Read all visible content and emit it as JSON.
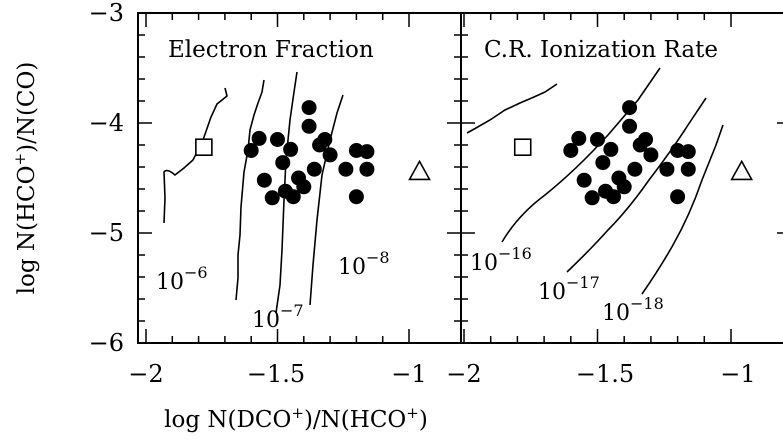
{
  "chart_data": [
    {
      "type": "scatter",
      "title": "Electron Fraction",
      "xlim": [
        -2.1,
        -0.9
      ],
      "ylim": [
        -6,
        -3
      ],
      "x_ticks": [
        "−2",
        "−1.5",
        "−1"
      ],
      "y_ticks": [
        "−3",
        "−4",
        "−5",
        "−6"
      ],
      "series": [
        {
          "marker": "filled-circle",
          "points": [
            [
              -1.6,
              -4.25
            ],
            [
              -1.57,
              -4.14
            ],
            [
              -1.55,
              -4.52
            ],
            [
              -1.52,
              -4.68
            ],
            [
              -1.5,
              -4.15
            ],
            [
              -1.48,
              -4.36
            ],
            [
              -1.47,
              -4.62
            ],
            [
              -1.45,
              -4.24
            ],
            [
              -1.44,
              -4.67
            ],
            [
              -1.42,
              -4.5
            ],
            [
              -1.4,
              -4.58
            ],
            [
              -1.38,
              -3.86
            ],
            [
              -1.38,
              -4.03
            ],
            [
              -1.36,
              -4.42
            ],
            [
              -1.34,
              -4.2
            ],
            [
              -1.32,
              -4.15
            ],
            [
              -1.3,
              -4.29
            ],
            [
              -1.24,
              -4.42
            ],
            [
              -1.2,
              -4.25
            ],
            [
              -1.2,
              -4.67
            ],
            [
              -1.16,
              -4.26
            ],
            [
              -1.16,
              -4.42
            ]
          ]
        },
        {
          "marker": "open-square",
          "points": [
            [
              -1.78,
              -4.22
            ]
          ]
        },
        {
          "marker": "open-triangle",
          "points": [
            [
              -0.96,
              -4.44
            ]
          ]
        }
      ],
      "contour_labels": [
        {
          "base": "10",
          "exp": "−6"
        },
        {
          "base": "10",
          "exp": "−7"
        },
        {
          "base": "10",
          "exp": "−8"
        }
      ]
    },
    {
      "type": "scatter",
      "title": "C.R. Ionization Rate",
      "xlim": [
        -2.1,
        -0.9
      ],
      "ylim": [
        -6,
        -3
      ],
      "x_ticks": [
        "−2",
        "−1.5",
        "−1"
      ],
      "series": [
        {
          "marker": "filled-circle",
          "points": [
            [
              -1.6,
              -4.25
            ],
            [
              -1.57,
              -4.14
            ],
            [
              -1.55,
              -4.52
            ],
            [
              -1.52,
              -4.68
            ],
            [
              -1.5,
              -4.15
            ],
            [
              -1.48,
              -4.36
            ],
            [
              -1.47,
              -4.62
            ],
            [
              -1.45,
              -4.24
            ],
            [
              -1.44,
              -4.67
            ],
            [
              -1.42,
              -4.5
            ],
            [
              -1.4,
              -4.58
            ],
            [
              -1.38,
              -3.86
            ],
            [
              -1.38,
              -4.03
            ],
            [
              -1.36,
              -4.42
            ],
            [
              -1.34,
              -4.2
            ],
            [
              -1.32,
              -4.15
            ],
            [
              -1.3,
              -4.29
            ],
            [
              -1.24,
              -4.42
            ],
            [
              -1.2,
              -4.25
            ],
            [
              -1.2,
              -4.67
            ],
            [
              -1.16,
              -4.26
            ],
            [
              -1.16,
              -4.42
            ]
          ]
        },
        {
          "marker": "open-square",
          "points": [
            [
              -1.78,
              -4.22
            ]
          ]
        },
        {
          "marker": "open-triangle",
          "points": [
            [
              -0.96,
              -4.44
            ]
          ]
        }
      ],
      "contour_labels": [
        {
          "base": "10",
          "exp": "−16"
        },
        {
          "base": "10",
          "exp": "−17"
        },
        {
          "base": "10",
          "exp": "−18"
        }
      ]
    }
  ],
  "axes": {
    "ylabel": {
      "pre": "log N(HCO",
      "sup": "+",
      "post": ")/N(CO)"
    },
    "xlabel": {
      "pre1": "log N(DCO",
      "sup1": "+",
      "mid": ")/N(HCO",
      "sup2": "+",
      "post": ")"
    }
  }
}
